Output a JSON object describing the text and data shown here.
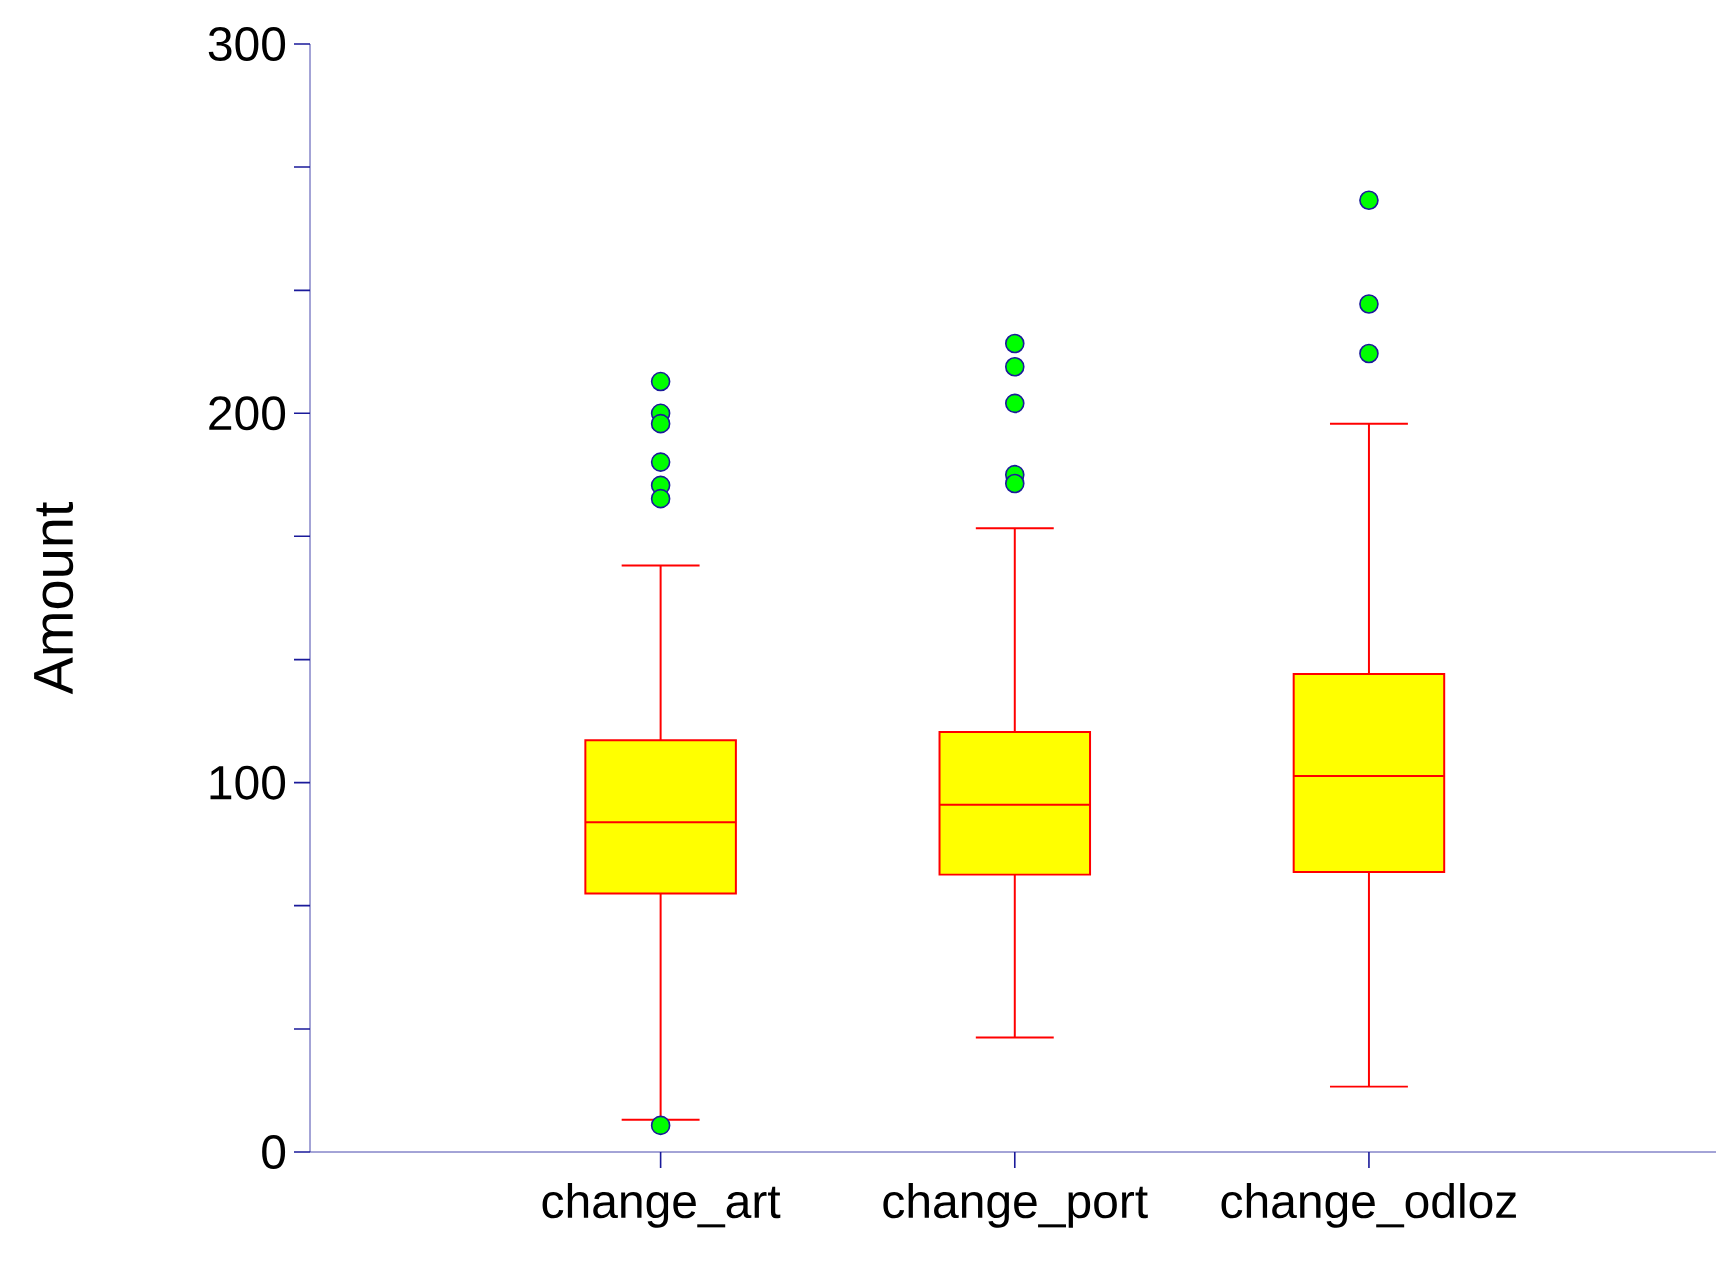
{
  "chart_data": {
    "type": "box",
    "ylabel": "Amount",
    "categories": [
      "change_art",
      "change_port",
      "change_odloz"
    ],
    "color": "#ffff00",
    "boxes": [
      {
        "low": 8.7,
        "q1": 70,
        "median": 89.3,
        "q3": 111.5,
        "high": 158.8,
        "outliers": [
          208.6,
          200,
          197.2,
          186.8,
          180.5,
          176.9,
          7.2
        ]
      },
      {
        "low": 31,
        "q1": 75.1,
        "median": 94,
        "q3": 113.7,
        "high": 168.9,
        "outliers": [
          218.9,
          212.6,
          202.7,
          183.4,
          181
        ]
      },
      {
        "low": 17.7,
        "q1": 75.8,
        "median": 101.8,
        "q3": 129.4,
        "high": 197.2,
        "outliers": [
          257.7,
          229.6,
          216.2
        ]
      }
    ],
    "ylim": [
      0,
      300
    ],
    "yticks": [
      0,
      {
        "value": 33.3,
        "label": null
      },
      {
        "value": 66.7,
        "label": null
      },
      100,
      {
        "value": 133.3,
        "label": null
      },
      {
        "value": 166.7,
        "label": null
      },
      200,
      {
        "value": 233.3,
        "label": null
      },
      {
        "value": 266.7,
        "label": null
      },
      300
    ],
    "marker": "circle"
  }
}
